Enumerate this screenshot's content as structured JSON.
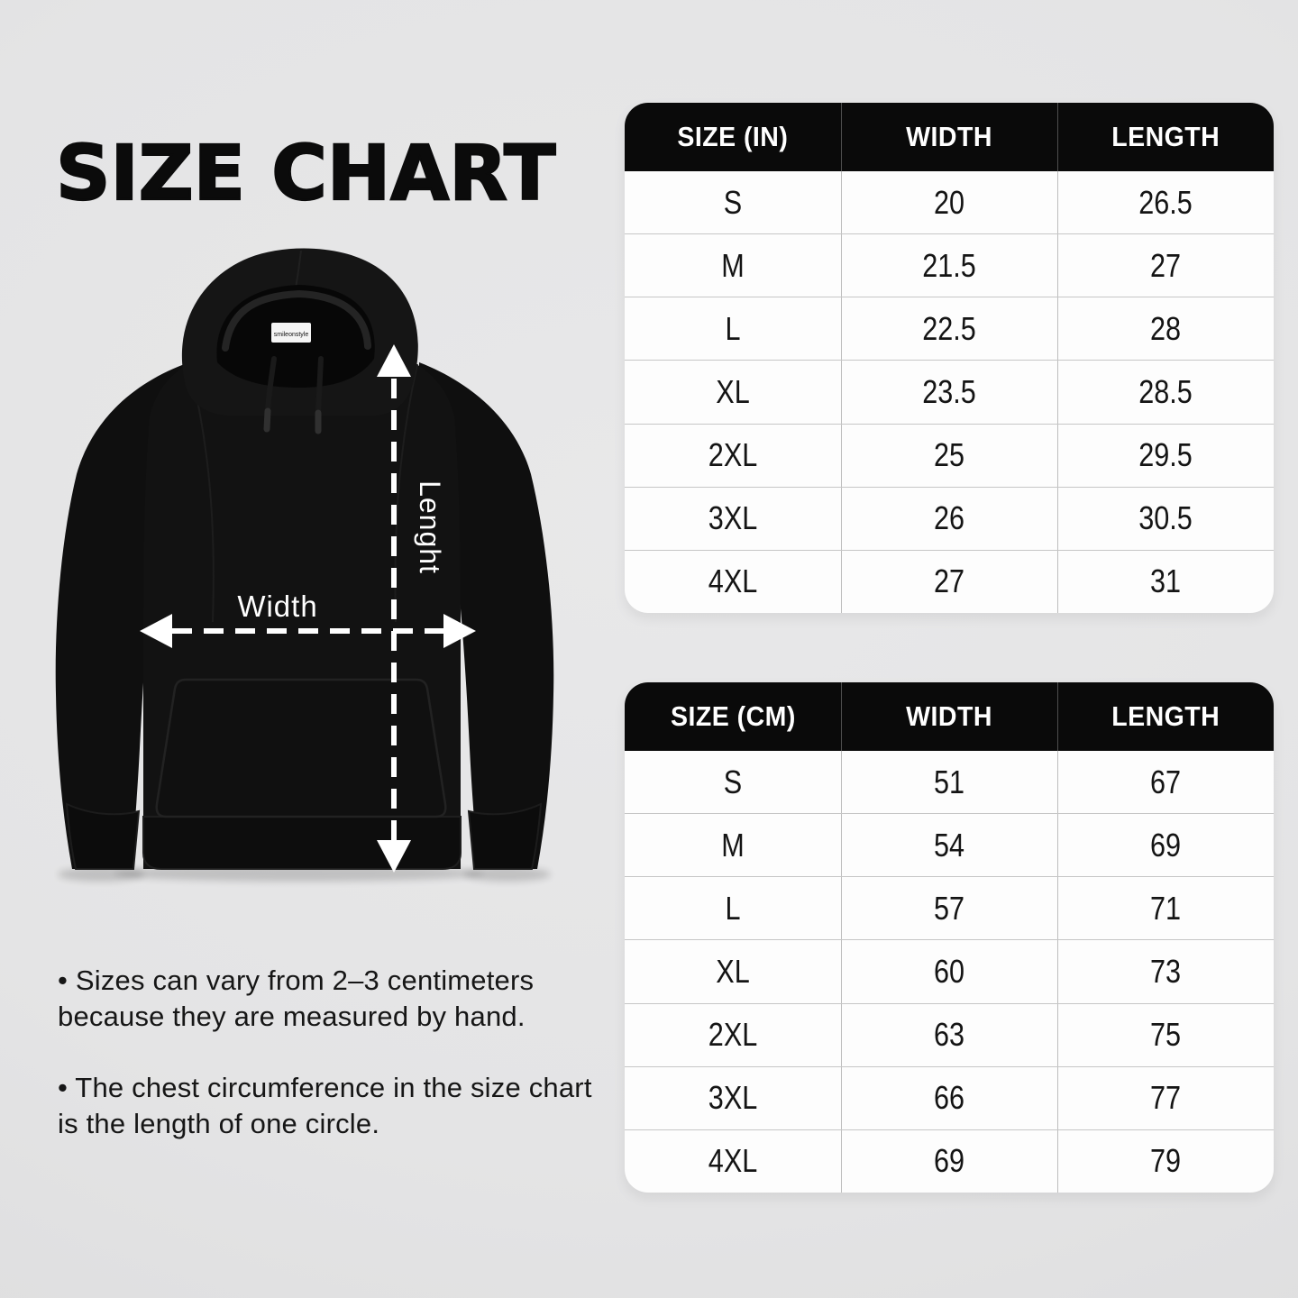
{
  "title": "SIZE CHART",
  "diagram": {
    "width_label": "Width",
    "length_label": "Lenght",
    "tag_text": "smileonstyle"
  },
  "tables": [
    {
      "name": "inches",
      "headers": [
        "SIZE (IN)",
        "WIDTH",
        "LENGTH"
      ],
      "rows": [
        [
          "S",
          "20",
          "26.5"
        ],
        [
          "M",
          "21.5",
          "27"
        ],
        [
          "L",
          "22.5",
          "28"
        ],
        [
          "XL",
          "23.5",
          "28.5"
        ],
        [
          "2XL",
          "25",
          "29.5"
        ],
        [
          "3XL",
          "26",
          "30.5"
        ],
        [
          "4XL",
          "27",
          "31"
        ]
      ]
    },
    {
      "name": "centimeters",
      "headers": [
        "SIZE (CM)",
        "WIDTH",
        "LENGTH"
      ],
      "rows": [
        [
          "S",
          "51",
          "67"
        ],
        [
          "M",
          "54",
          "69"
        ],
        [
          "L",
          "57",
          "71"
        ],
        [
          "XL",
          "60",
          "73"
        ],
        [
          "2XL",
          "63",
          "75"
        ],
        [
          "3XL",
          "66",
          "77"
        ],
        [
          "4XL",
          "69",
          "79"
        ]
      ]
    }
  ],
  "notes": [
    "• Sizes can vary from 2–3 centimeters because they are measured by hand.",
    "• The chest circumference in the size chart is the length of one circle."
  ],
  "chart_data": [
    {
      "type": "table",
      "title": "SIZE (IN)",
      "columns": [
        "SIZE (IN)",
        "WIDTH",
        "LENGTH"
      ],
      "categories": [
        "S",
        "M",
        "L",
        "XL",
        "2XL",
        "3XL",
        "4XL"
      ],
      "series": [
        {
          "name": "WIDTH",
          "values": [
            20,
            21.5,
            22.5,
            23.5,
            25,
            26,
            27
          ]
        },
        {
          "name": "LENGTH",
          "values": [
            26.5,
            27,
            28,
            28.5,
            29.5,
            30.5,
            31
          ]
        }
      ]
    },
    {
      "type": "table",
      "title": "SIZE (CM)",
      "columns": [
        "SIZE (CM)",
        "WIDTH",
        "LENGTH"
      ],
      "categories": [
        "S",
        "M",
        "L",
        "XL",
        "2XL",
        "3XL",
        "4XL"
      ],
      "series": [
        {
          "name": "WIDTH",
          "values": [
            51,
            54,
            57,
            60,
            63,
            66,
            69
          ]
        },
        {
          "name": "LENGTH",
          "values": [
            67,
            69,
            71,
            73,
            75,
            77,
            79
          ]
        }
      ]
    }
  ],
  "colors": {
    "background": "#e4e4e4",
    "table_bg": "#fdfdfd",
    "header_bg": "#0a0a0a",
    "header_text": "#ffffff",
    "cell_text": "#141414",
    "grid_line": "#bdbdbd",
    "hoodie_black": "#111111",
    "arrow_white": "#ffffff"
  }
}
